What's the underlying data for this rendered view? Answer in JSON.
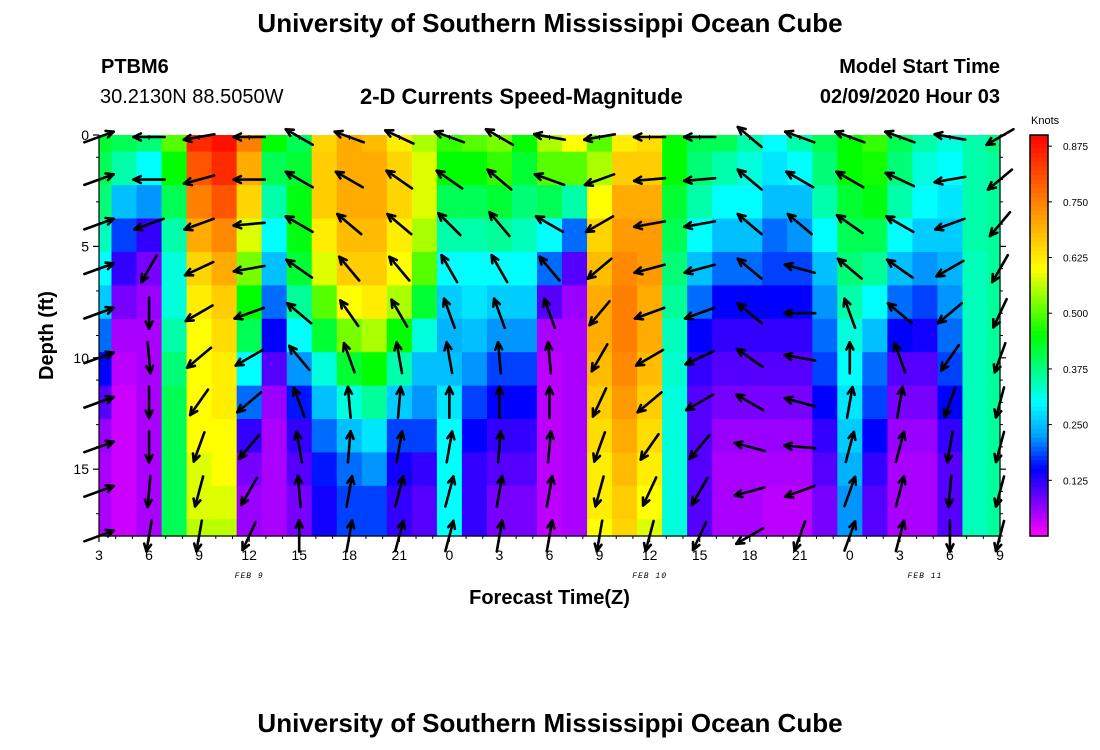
{
  "header": {
    "title_top": "University of Southern Mississippi Ocean Cube",
    "title_bottom": "University of Southern Mississippi Ocean Cube",
    "station": "PTBM6",
    "coords": "30.2130N 88.5050W",
    "chart_title": "2-D Currents Speed-Magnitude",
    "model_label": "Model Start Time",
    "model_time": "02/09/2020 Hour 03"
  },
  "chart_data": {
    "type": "heatmap",
    "title": "2-D Currents Speed-Magnitude",
    "xlabel": "Forecast Time(Z)",
    "ylabel": "Depth (ft)",
    "x_tick_labels": [
      "3",
      "6",
      "9",
      "12",
      "15",
      "18",
      "21",
      "0",
      "3",
      "6",
      "9",
      "12",
      "15",
      "18",
      "21",
      "0",
      "3",
      "6",
      "9"
    ],
    "x_range_hours": [
      0,
      54
    ],
    "y_ticks": [
      0,
      5,
      10,
      15
    ],
    "ylim": [
      0,
      18
    ],
    "date_labels": [
      {
        "text": "FEB 9",
        "hour": 9
      },
      {
        "text": "FEB 10",
        "hour": 33
      },
      {
        "text": "FEB 11",
        "hour": 49.5
      }
    ],
    "colorbar": {
      "label": "Knots",
      "range": [
        0,
        0.9
      ],
      "ticks": [
        "0.875",
        "0.750",
        "0.625",
        "0.500",
        "0.375",
        "0.250",
        "0.125"
      ],
      "tick_values": [
        0.875,
        0.75,
        0.625,
        0.5,
        0.375,
        0.25,
        0.125
      ],
      "colors": [
        "#ff00ff",
        "#7f00ff",
        "#0000ff",
        "#00a0ff",
        "#00ffff",
        "#00ff80",
        "#00ff00",
        "#80ff00",
        "#ffff00",
        "#ffc000",
        "#ff8000",
        "#ff4000",
        "#ff0000"
      ]
    },
    "speed_grid_depths_ft": [
      0,
      1.5,
      3,
      4.5,
      6,
      7.5,
      9,
      10.5,
      12,
      13.5,
      15,
      16.5,
      18
    ],
    "speed_grid_hours": [
      0,
      1.5,
      3,
      4.5,
      6,
      7.5,
      9,
      10.5,
      12,
      13.5,
      15,
      16.5,
      18,
      19.5,
      21,
      22.5,
      24,
      25.5,
      27,
      28.5,
      30,
      31.5,
      33,
      34.5,
      36,
      37.5,
      39,
      40.5,
      42,
      43.5,
      45,
      46.5,
      48,
      49.5,
      51,
      52.5,
      54
    ],
    "speed_knots": [
      [
        0.42,
        0.4,
        0.38,
        0.34,
        0.3,
        0.26,
        0.2,
        0.15,
        0.1,
        0.06,
        0.05,
        0.05,
        0.05
      ],
      [
        0.4,
        0.35,
        0.25,
        0.18,
        0.12,
        0.08,
        0.05,
        0.04,
        0.03,
        0.03,
        0.03,
        0.03,
        0.03
      ],
      [
        0.38,
        0.3,
        0.22,
        0.12,
        0.08,
        0.06,
        0.05,
        0.05,
        0.05,
        0.05,
        0.05,
        0.05,
        0.05
      ],
      [
        0.5,
        0.45,
        0.4,
        0.35,
        0.32,
        0.32,
        0.35,
        0.38,
        0.4,
        0.4,
        0.4,
        0.4,
        0.4
      ],
      [
        0.85,
        0.8,
        0.75,
        0.7,
        0.65,
        0.62,
        0.6,
        0.6,
        0.6,
        0.6,
        0.58,
        0.58,
        0.56
      ],
      [
        0.88,
        0.85,
        0.8,
        0.74,
        0.7,
        0.66,
        0.64,
        0.62,
        0.62,
        0.6,
        0.6,
        0.58,
        0.56
      ],
      [
        0.75,
        0.7,
        0.65,
        0.58,
        0.52,
        0.45,
        0.4,
        0.3,
        0.2,
        0.12,
        0.08,
        0.06,
        0.06
      ],
      [
        0.45,
        0.4,
        0.35,
        0.3,
        0.25,
        0.2,
        0.15,
        0.1,
        0.06,
        0.05,
        0.05,
        0.05,
        0.05
      ],
      [
        0.4,
        0.42,
        0.44,
        0.44,
        0.42,
        0.36,
        0.3,
        0.22,
        0.16,
        0.12,
        0.1,
        0.08,
        0.08
      ],
      [
        0.65,
        0.66,
        0.66,
        0.62,
        0.58,
        0.5,
        0.42,
        0.32,
        0.25,
        0.2,
        0.16,
        0.14,
        0.14
      ],
      [
        0.7,
        0.7,
        0.7,
        0.68,
        0.66,
        0.6,
        0.52,
        0.42,
        0.32,
        0.25,
        0.2,
        0.18,
        0.18
      ],
      [
        0.68,
        0.7,
        0.7,
        0.68,
        0.66,
        0.62,
        0.55,
        0.45,
        0.36,
        0.28,
        0.22,
        0.18,
        0.18
      ],
      [
        0.62,
        0.65,
        0.65,
        0.62,
        0.6,
        0.55,
        0.45,
        0.35,
        0.26,
        0.18,
        0.14,
        0.12,
        0.12
      ],
      [
        0.55,
        0.58,
        0.58,
        0.55,
        0.5,
        0.42,
        0.32,
        0.25,
        0.22,
        0.18,
        0.12,
        0.1,
        0.1
      ],
      [
        0.48,
        0.45,
        0.4,
        0.35,
        0.3,
        0.26,
        0.24,
        0.25,
        0.28,
        0.3,
        0.3,
        0.3,
        0.3
      ],
      [
        0.5,
        0.45,
        0.4,
        0.35,
        0.3,
        0.28,
        0.25,
        0.22,
        0.18,
        0.15,
        0.12,
        0.12,
        0.12
      ],
      [
        0.52,
        0.48,
        0.42,
        0.36,
        0.3,
        0.26,
        0.22,
        0.18,
        0.15,
        0.12,
        0.1,
        0.08,
        0.08
      ],
      [
        0.45,
        0.42,
        0.38,
        0.34,
        0.3,
        0.26,
        0.22,
        0.18,
        0.15,
        0.12,
        0.1,
        0.08,
        0.08
      ],
      [
        0.55,
        0.5,
        0.4,
        0.3,
        0.2,
        0.1,
        0.05,
        0.04,
        0.04,
        0.04,
        0.04,
        0.04,
        0.04
      ],
      [
        0.6,
        0.5,
        0.35,
        0.2,
        0.1,
        0.06,
        0.05,
        0.05,
        0.05,
        0.05,
        0.05,
        0.05,
        0.05
      ],
      [
        0.5,
        0.55,
        0.6,
        0.65,
        0.68,
        0.7,
        0.7,
        0.68,
        0.66,
        0.64,
        0.62,
        0.62,
        0.6
      ],
      [
        0.62,
        0.66,
        0.7,
        0.72,
        0.74,
        0.75,
        0.75,
        0.74,
        0.72,
        0.7,
        0.68,
        0.66,
        0.65
      ],
      [
        0.64,
        0.66,
        0.7,
        0.72,
        0.72,
        0.7,
        0.7,
        0.68,
        0.66,
        0.64,
        0.62,
        0.6,
        0.58
      ],
      [
        0.45,
        0.45,
        0.42,
        0.4,
        0.38,
        0.36,
        0.34,
        0.33,
        0.32,
        0.32,
        0.32,
        0.32,
        0.32
      ],
      [
        0.4,
        0.38,
        0.35,
        0.3,
        0.25,
        0.2,
        0.15,
        0.12,
        0.1,
        0.1,
        0.1,
        0.1,
        0.1
      ],
      [
        0.4,
        0.35,
        0.3,
        0.25,
        0.2,
        0.15,
        0.12,
        0.1,
        0.08,
        0.06,
        0.05,
        0.05,
        0.05
      ],
      [
        0.35,
        0.32,
        0.3,
        0.25,
        0.2,
        0.15,
        0.12,
        0.1,
        0.08,
        0.06,
        0.05,
        0.05,
        0.05
      ],
      [
        0.3,
        0.28,
        0.25,
        0.2,
        0.18,
        0.15,
        0.12,
        0.1,
        0.08,
        0.06,
        0.05,
        0.04,
        0.04
      ],
      [
        0.35,
        0.3,
        0.25,
        0.22,
        0.18,
        0.15,
        0.12,
        0.1,
        0.08,
        0.06,
        0.05,
        0.04,
        0.04
      ],
      [
        0.4,
        0.38,
        0.35,
        0.3,
        0.25,
        0.22,
        0.2,
        0.18,
        0.15,
        0.12,
        0.1,
        0.08,
        0.08
      ],
      [
        0.45,
        0.45,
        0.42,
        0.4,
        0.38,
        0.35,
        0.32,
        0.3,
        0.28,
        0.26,
        0.24,
        0.22,
        0.22
      ],
      [
        0.48,
        0.46,
        0.44,
        0.4,
        0.36,
        0.3,
        0.25,
        0.2,
        0.18,
        0.15,
        0.12,
        0.1,
        0.1
      ],
      [
        0.4,
        0.38,
        0.35,
        0.3,
        0.25,
        0.2,
        0.15,
        0.1,
        0.08,
        0.06,
        0.05,
        0.05,
        0.05
      ],
      [
        0.35,
        0.32,
        0.3,
        0.26,
        0.22,
        0.18,
        0.14,
        0.1,
        0.08,
        0.06,
        0.05,
        0.05,
        0.05
      ],
      [
        0.32,
        0.3,
        0.28,
        0.26,
        0.24,
        0.22,
        0.2,
        0.18,
        0.15,
        0.12,
        0.1,
        0.1,
        0.1
      ],
      [
        0.35,
        0.35,
        0.35,
        0.35,
        0.34,
        0.34,
        0.34,
        0.34,
        0.34,
        0.34,
        0.34,
        0.34,
        0.34
      ],
      [
        0.38,
        0.36,
        0.36,
        0.36,
        0.36,
        0.36,
        0.36,
        0.36,
        0.36,
        0.36,
        0.36,
        0.36,
        0.36
      ]
    ],
    "arrow_hours": [
      0,
      3,
      6,
      9,
      12,
      15,
      18,
      21,
      24,
      27,
      30,
      33,
      36,
      39,
      42,
      45,
      48,
      51,
      54
    ],
    "arrow_depths_ft": [
      0,
      2,
      4,
      6,
      8,
      10,
      12,
      14,
      16,
      18
    ],
    "arrow_direction_deg": [
      [
        20,
        20,
        20,
        20,
        20,
        20,
        20,
        20,
        20,
        20
      ],
      [
        180,
        180,
        200,
        240,
        270,
        275,
        270,
        270,
        265,
        260
      ],
      [
        190,
        195,
        200,
        205,
        210,
        220,
        235,
        250,
        255,
        260
      ],
      [
        180,
        180,
        185,
        190,
        200,
        210,
        220,
        230,
        240,
        245
      ],
      [
        150,
        150,
        150,
        145,
        140,
        130,
        110,
        100,
        95,
        90
      ],
      [
        160,
        150,
        140,
        130,
        125,
        110,
        95,
        85,
        80,
        80
      ],
      [
        155,
        145,
        140,
        130,
        120,
        100,
        85,
        80,
        75,
        75
      ],
      [
        160,
        145,
        135,
        120,
        110,
        100,
        90,
        80,
        75,
        75
      ],
      [
        150,
        140,
        130,
        120,
        110,
        95,
        90,
        85,
        80,
        80
      ],
      [
        170,
        160,
        150,
        130,
        110,
        95,
        90,
        85,
        80,
        80
      ],
      [
        190,
        200,
        210,
        220,
        230,
        240,
        245,
        250,
        255,
        260
      ],
      [
        180,
        185,
        190,
        195,
        200,
        210,
        220,
        235,
        245,
        255
      ],
      [
        180,
        185,
        190,
        195,
        200,
        205,
        210,
        230,
        240,
        245
      ],
      [
        140,
        140,
        140,
        140,
        140,
        145,
        150,
        165,
        195,
        210
      ],
      [
        160,
        150,
        140,
        165,
        180,
        170,
        165,
        175,
        200,
        250
      ],
      [
        160,
        150,
        145,
        140,
        110,
        90,
        80,
        75,
        70,
        70
      ],
      [
        160,
        155,
        150,
        145,
        140,
        110,
        80,
        75,
        75,
        75
      ],
      [
        170,
        190,
        200,
        210,
        220,
        235,
        250,
        260,
        265,
        270
      ],
      [
        210,
        220,
        230,
        240,
        245,
        250,
        255,
        255,
        255,
        255
      ]
    ]
  }
}
